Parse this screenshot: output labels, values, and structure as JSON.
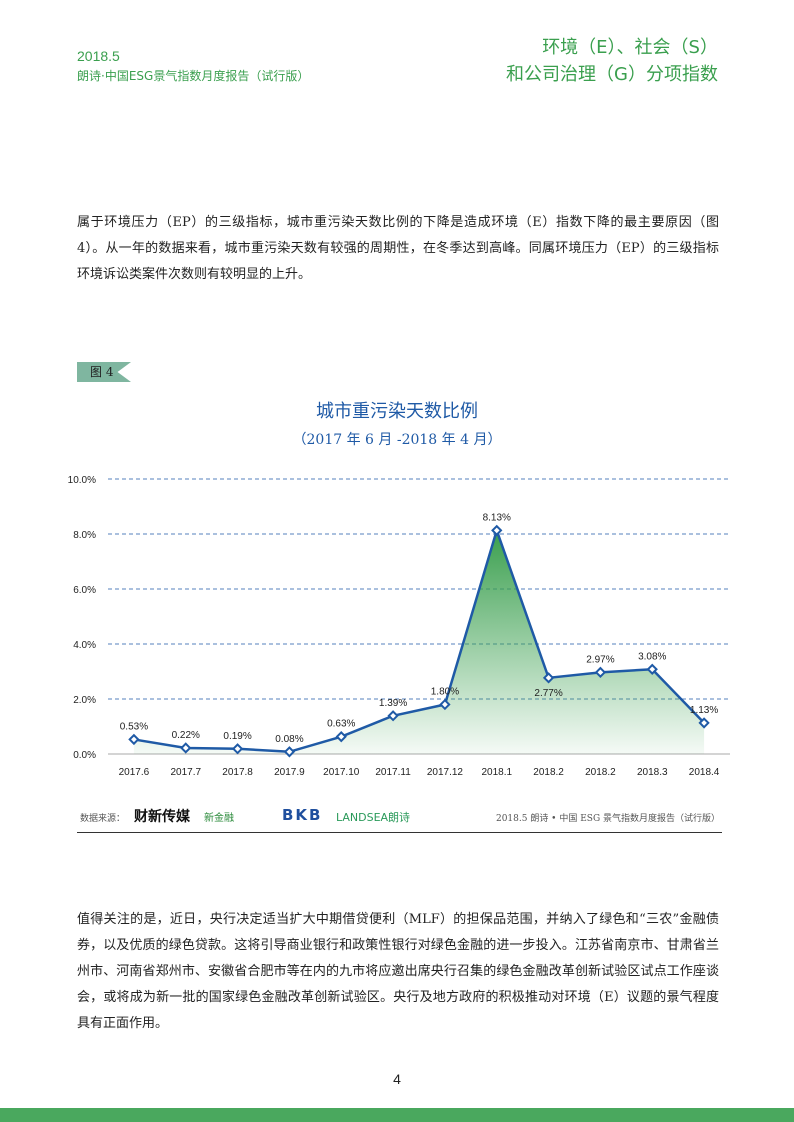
{
  "header": {
    "date": "2018.5",
    "report": "朗诗·中国ESG景气指数月度报告（试行版）",
    "section_line1": "环境（E）、社会（S）",
    "section_line2": "和公司治理（G）分项指数"
  },
  "paragraphs": [
    "属于环境压力（EP）的三级指标，城市重污染天数比例的下降是造成环境（E）指数下降的最主要原因（图 4）。从一年的数据来看，城市重污染天数有较强的周期性，在冬季达到高峰。同属环境压力（EP）的三级指标环境诉讼类案件次数则有较明显的上升。",
    "值得关注的是，近日，央行决定适当扩大中期借贷便利（MLF）的担保品范围，并纳入了绿色和“三农”金融债券，以及优质的绿色贷款。这将引导商业银行和政策性银行对绿色金融的进一步投入。江苏省南京市、甘肃省兰州市、河南省郑州市、安徽省合肥市等在内的九市将应邀出席央行召集的绿色金融改革创新试验区试点工作座谈会，或将成为新一批的国家绿色金融改革创新试验区。央行及地方政府的积极推动对环境（E）议题的景气程度具有正面作用。"
  ],
  "figure_label": "图 4",
  "chart_data": {
    "type": "area",
    "title": "城市重污染天数比例",
    "subtitle": "（2017 年 6 月 -2018 年 4 月）",
    "categories": [
      "2017.6",
      "2017.7",
      "2017.8",
      "2017.9",
      "2017.10",
      "2017.11",
      "2017.12",
      "2018.1",
      "2018.2",
      "2018.2",
      "2018.3",
      "2018.4"
    ],
    "values": [
      0.53,
      0.22,
      0.19,
      0.08,
      0.63,
      1.39,
      1.8,
      8.13,
      2.77,
      2.97,
      3.08,
      1.13
    ],
    "value_labels": [
      "0.53%",
      "0.22%",
      "0.19%",
      "0.08%",
      "0.63%",
      "1.39%",
      "1.80%",
      "8.13%",
      "2.77%",
      "2.97%",
      "3.08%",
      "1.13%"
    ],
    "line_color": "#1f5aa6",
    "fill_color": "#3a9f4e",
    "ylim": [
      0,
      10
    ],
    "yticks": [
      {
        "value": 0,
        "label": "0.0%"
      },
      {
        "value": 2,
        "label": "2.0%"
      },
      {
        "value": 4,
        "label": "4.0%"
      },
      {
        "value": 6,
        "label": "6.0%"
      },
      {
        "value": 8,
        "label": "8.0%"
      },
      {
        "value": 10,
        "label": "10.0%"
      }
    ],
    "grid": true
  },
  "footer": {
    "source_label": "数据来源：",
    "logos": [
      "财新传媒",
      "新金融",
      "BKB",
      "LANDSEA朗诗"
    ],
    "report": "2018.5 朗诗 • 中国 ESG 景气指数月度报告（试行版）"
  },
  "page_number": "4"
}
